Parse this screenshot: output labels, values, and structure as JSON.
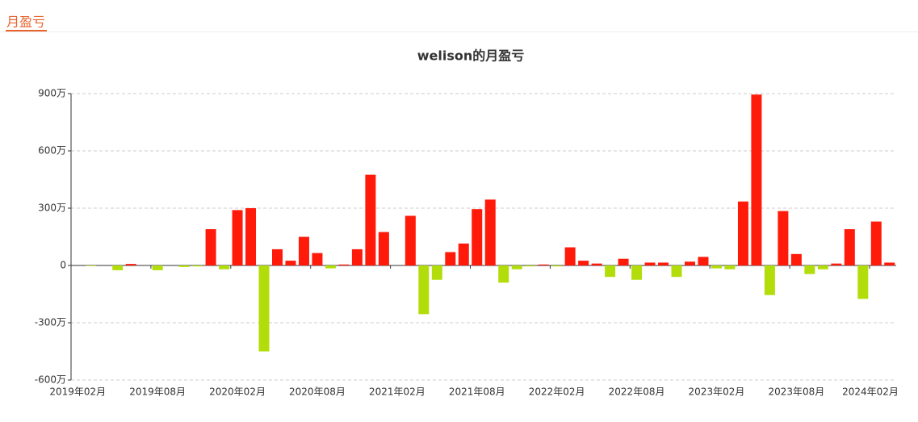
{
  "tab": "月盈亏",
  "chart_data": {
    "type": "bar",
    "title": "welison的月盈亏",
    "categories": [
      "2019年02月",
      null,
      null,
      null,
      null,
      null,
      "2019年08月",
      null,
      null,
      null,
      null,
      null,
      "2020年02月",
      null,
      null,
      null,
      null,
      null,
      "2020年08月",
      null,
      null,
      null,
      null,
      null,
      "2021年02月",
      null,
      null,
      null,
      null,
      null,
      "2021年08月",
      null,
      null,
      null,
      null,
      null,
      "2022年02月",
      null,
      null,
      null,
      null,
      null,
      "2022年08月",
      null,
      null,
      null,
      null,
      null,
      "2023年02月",
      null,
      null,
      null,
      null,
      null,
      "2023年08月",
      null,
      null,
      null,
      null,
      null,
      "2024年02月",
      null
    ],
    "values": [
      0,
      -3,
      0,
      -25,
      8,
      0,
      -25,
      0,
      -8,
      -5,
      190,
      -20,
      290,
      300,
      -450,
      85,
      25,
      150,
      65,
      -15,
      5,
      85,
      475,
      175,
      0,
      260,
      -255,
      -75,
      70,
      115,
      295,
      345,
      -90,
      -20,
      -5,
      5,
      -5,
      95,
      25,
      10,
      -60,
      35,
      -75,
      15,
      15,
      -60,
      20,
      45,
      -15,
      -20,
      335,
      895,
      -155,
      285,
      60,
      -45,
      -20,
      10,
      190,
      -175,
      230,
      15
    ],
    "positive_color": "#ff1a0a",
    "negative_color": "#b3dd0a",
    "ylim": [
      -600,
      900
    ],
    "yticks": [
      {
        "value": -600,
        "label": "-600万"
      },
      {
        "value": -300,
        "label": "-300万"
      },
      0,
      {
        "value": 300,
        "label": "300万"
      },
      {
        "value": 600,
        "label": "600万"
      },
      {
        "value": 900,
        "label": "900万"
      }
    ],
    "grid": true
  }
}
